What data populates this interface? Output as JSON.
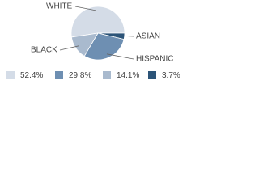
{
  "chart_data": {
    "type": "pie",
    "categories": [
      "WHITE",
      "ASIAN",
      "HISPANIC",
      "BLACK"
    ],
    "values": [
      52.4,
      3.7,
      29.8,
      14.1
    ],
    "value_labels": [
      "52.4%",
      "3.7%",
      "29.8%",
      "14.1%"
    ],
    "colors": [
      "#d4dce7",
      "#2c5478",
      "#6e8fb2",
      "#a9bace"
    ]
  }
}
